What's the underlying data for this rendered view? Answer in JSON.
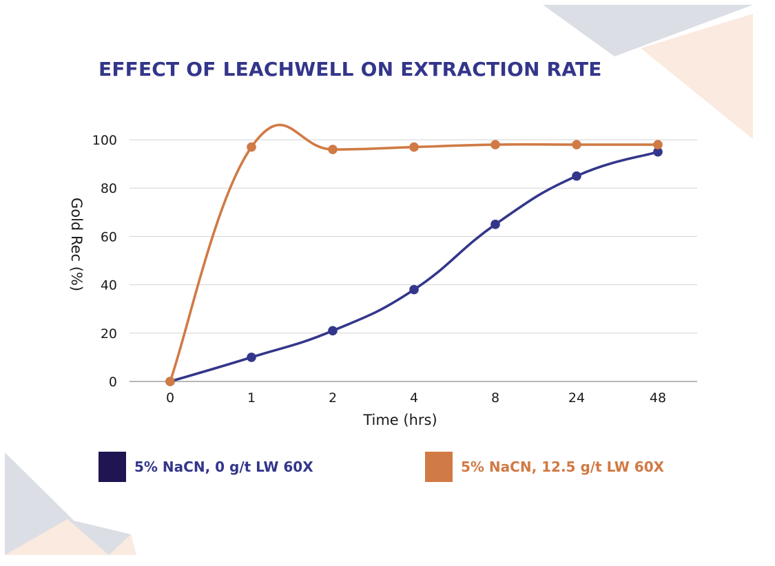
{
  "colors": {
    "title": "#33368a",
    "series_0": "#33368a",
    "series_1": "#d07a45",
    "legend_swatch_0": "#201452",
    "legend_swatch_1": "#d07a45",
    "legend_text_0": "#33368a",
    "legend_text_1": "#d07a45",
    "grid": "#d3d3d3",
    "axis_text": "#1a1a1a",
    "deco_gray": "#dcdee6",
    "deco_peach": "#fbeadf"
  },
  "chart_data": {
    "type": "line",
    "title": "EFFECT OF LEACHWELL ON EXTRACTION RATE",
    "xlabel": "Time (hrs)",
    "ylabel": "Gold Rec (%)",
    "categories": [
      "0",
      "1",
      "2",
      "4",
      "8",
      "24",
      "48"
    ],
    "ylim": [
      0,
      100
    ],
    "yticks": [
      0,
      20,
      40,
      60,
      80,
      100
    ],
    "grid": true,
    "legend_position": "bottom",
    "series": [
      {
        "name": "5% NaCN, 0 g/t LW 60X",
        "values": [
          0,
          10,
          21,
          38,
          65,
          85,
          95
        ],
        "color_key": "series_0"
      },
      {
        "name": "5% NaCN, 12.5 g/t LW 60X",
        "values": [
          0,
          97,
          96,
          97,
          98,
          98,
          98
        ],
        "color_key": "series_1"
      }
    ]
  }
}
